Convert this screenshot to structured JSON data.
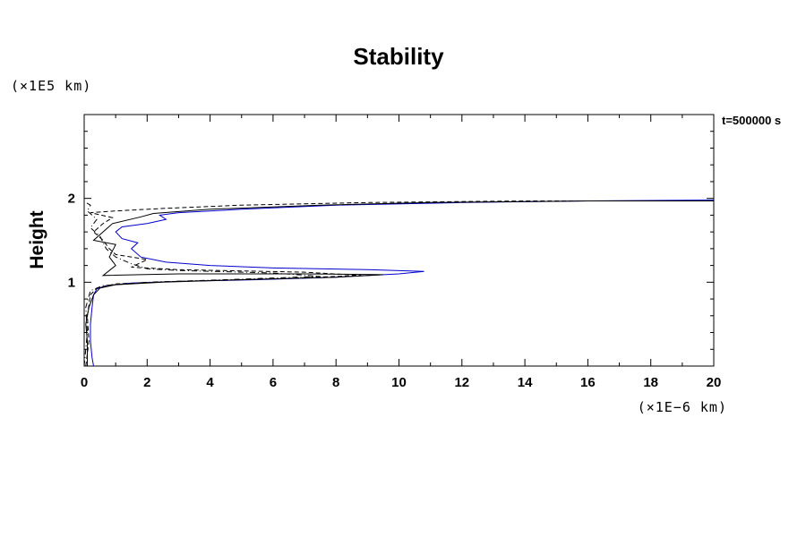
{
  "chart_data": {
    "type": "line",
    "title": "Stability",
    "ylabel": "Height",
    "xlabel": "",
    "x_unit": "(×1E−6 km)",
    "y_unit": "(×1E5 km)",
    "time_label": "t=500000 s",
    "xlim": [
      0,
      20
    ],
    "ylim": [
      0,
      3
    ],
    "x_ticks": [
      0,
      2,
      4,
      6,
      8,
      10,
      12,
      14,
      16,
      18,
      20
    ],
    "y_ticks": [
      1,
      2
    ],
    "series": [
      {
        "style": "solid",
        "color": "#0000cc",
        "points": [
          [
            0.3,
            0.0
          ],
          [
            0.25,
            0.1
          ],
          [
            0.2,
            0.3
          ],
          [
            0.2,
            0.5
          ],
          [
            0.25,
            0.7
          ],
          [
            0.3,
            0.85
          ],
          [
            0.4,
            0.92
          ],
          [
            0.7,
            0.96
          ],
          [
            1.5,
            0.99
          ],
          [
            3.0,
            1.01
          ],
          [
            5.5,
            1.03
          ],
          [
            8.0,
            1.06
          ],
          [
            10.0,
            1.1
          ],
          [
            10.8,
            1.13
          ],
          [
            9.0,
            1.15
          ],
          [
            6.0,
            1.17
          ],
          [
            4.0,
            1.2
          ],
          [
            2.6,
            1.24
          ],
          [
            1.8,
            1.3
          ],
          [
            1.5,
            1.4
          ],
          [
            1.7,
            1.47
          ],
          [
            1.2,
            1.52
          ],
          [
            1.0,
            1.6
          ],
          [
            1.2,
            1.66
          ],
          [
            2.0,
            1.7
          ],
          [
            2.6,
            1.75
          ],
          [
            2.4,
            1.8
          ],
          [
            3.0,
            1.83
          ],
          [
            5.0,
            1.87
          ],
          [
            8.0,
            1.92
          ],
          [
            12.0,
            1.95
          ],
          [
            16.0,
            1.97
          ],
          [
            20.0,
            1.98
          ]
        ]
      },
      {
        "style": "solid",
        "color": "#000000",
        "points": [
          [
            0.1,
            0.0
          ],
          [
            0.1,
            0.3
          ],
          [
            0.05,
            0.5
          ],
          [
            0.15,
            0.7
          ],
          [
            0.3,
            0.85
          ],
          [
            0.5,
            0.93
          ],
          [
            1.0,
            0.97
          ],
          [
            2.5,
            1.0
          ],
          [
            5.0,
            1.03
          ],
          [
            8.0,
            1.06
          ],
          [
            9.5,
            1.09
          ],
          [
            7.0,
            1.1
          ],
          [
            3.0,
            1.1
          ],
          [
            0.6,
            1.08
          ],
          [
            1.0,
            1.2
          ],
          [
            0.8,
            1.3
          ],
          [
            1.0,
            1.45
          ],
          [
            0.3,
            1.5
          ],
          [
            0.6,
            1.6
          ],
          [
            0.9,
            1.7
          ],
          [
            1.8,
            1.78
          ],
          [
            2.2,
            1.82
          ],
          [
            4.0,
            1.87
          ],
          [
            7.5,
            1.92
          ],
          [
            11.0,
            1.95
          ],
          [
            16.0,
            1.97
          ],
          [
            20.0,
            1.97
          ]
        ]
      },
      {
        "style": "dashed",
        "color": "#000000",
        "points": [
          [
            0.05,
            0.0
          ],
          [
            0.15,
            0.3
          ],
          [
            0.1,
            0.6
          ],
          [
            0.2,
            0.85
          ],
          [
            0.4,
            0.93
          ],
          [
            1.0,
            0.98
          ],
          [
            3.0,
            1.01
          ],
          [
            6.0,
            1.04
          ],
          [
            8.8,
            1.08
          ],
          [
            7.0,
            1.12
          ],
          [
            3.0,
            1.15
          ],
          [
            1.5,
            1.18
          ],
          [
            2.0,
            1.27
          ],
          [
            1.0,
            1.33
          ],
          [
            0.8,
            1.4
          ],
          [
            0.6,
            1.5
          ],
          [
            0.3,
            1.6
          ],
          [
            0.6,
            1.7
          ],
          [
            0.9,
            1.77
          ],
          [
            0.2,
            1.83
          ],
          [
            1.0,
            1.85
          ],
          [
            2.5,
            1.88
          ],
          [
            5.0,
            1.92
          ],
          [
            9.0,
            1.95
          ],
          [
            14.0,
            1.97
          ],
          [
            20.0,
            1.97
          ]
        ]
      },
      {
        "style": "dashdot",
        "color": "#000000",
        "points": [
          [
            0.0,
            0.0
          ],
          [
            0.1,
            0.4
          ],
          [
            0.05,
            0.7
          ],
          [
            0.2,
            0.9
          ],
          [
            0.6,
            0.96
          ],
          [
            2.0,
            1.0
          ],
          [
            4.5,
            1.03
          ],
          [
            7.5,
            1.07
          ],
          [
            6.0,
            1.11
          ],
          [
            3.0,
            1.14
          ],
          [
            2.0,
            1.16
          ],
          [
            1.5,
            1.22
          ],
          [
            1.0,
            1.3
          ],
          [
            0.7,
            1.4
          ],
          [
            0.5,
            1.55
          ],
          [
            0.2,
            1.65
          ],
          [
            0.4,
            1.75
          ],
          [
            0.1,
            1.85
          ],
          [
            0.2,
            1.92
          ],
          [
            0.05,
            1.95
          ]
        ]
      }
    ]
  }
}
